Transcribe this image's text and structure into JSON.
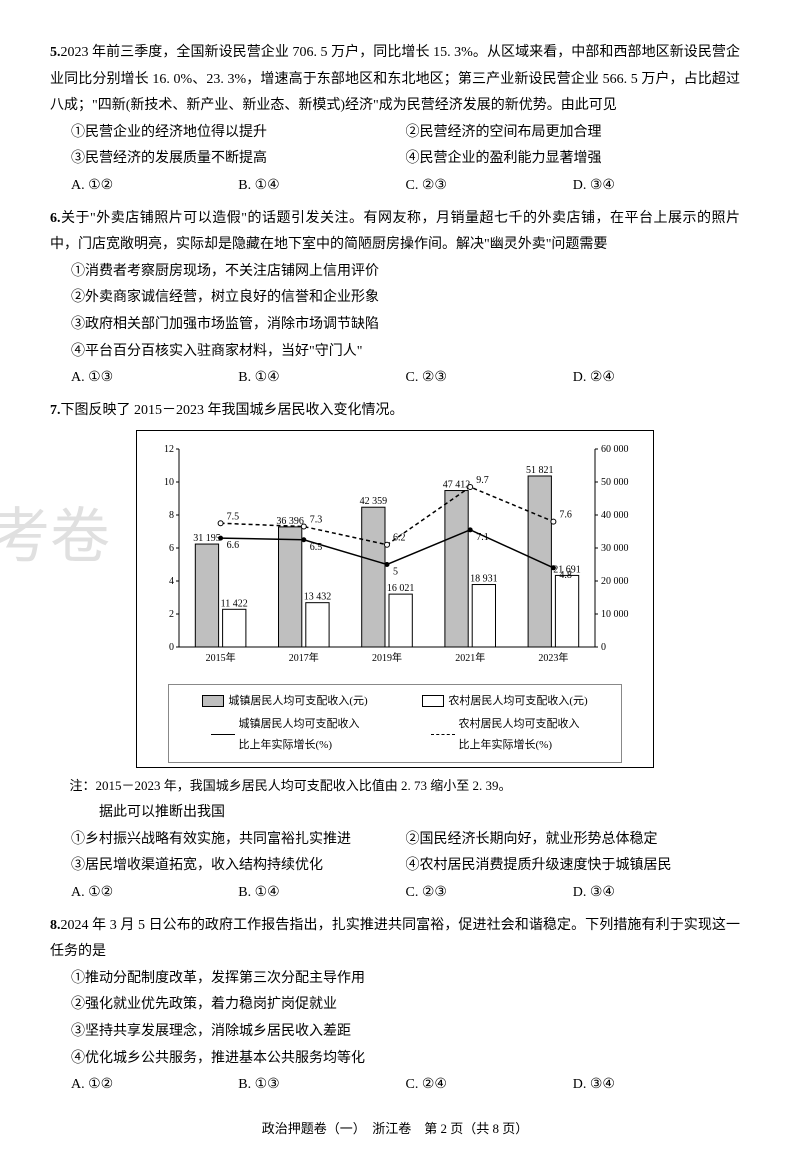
{
  "watermark": "考卷",
  "q5": {
    "num": "5.",
    "stem": "2023 年前三季度，全国新设民营企业 706. 5 万户，同比增长 15. 3%。从区域来看，中部和西部地区新设民营企业同比分别增长 16. 0%、23. 3%，增速高于东部地区和东北地区；第三产业新设民营企业 566. 5 万户，占比超过八成；\"四新(新技术、新产业、新业态、新模式)经济\"成为民营经济发展的新优势。由此可见",
    "s1": "①民营企业的经济地位得以提升",
    "s2": "②民营经济的空间布局更加合理",
    "s3": "③民营经济的发展质量不断提高",
    "s4": "④民营企业的盈利能力显著增强",
    "A": "A. ①②",
    "B": "B. ①④",
    "C": "C. ②③",
    "D": "D. ③④"
  },
  "q6": {
    "num": "6.",
    "stem": "关于\"外卖店铺照片可以造假\"的话题引发关注。有网友称，月销量超七千的外卖店铺，在平台上展示的照片中，门店宽敞明亮，实际却是隐藏在地下室中的简陋厨房操作间。解决\"幽灵外卖\"问题需要",
    "s1": "①消费者考察厨房现场，不关注店铺网上信用评价",
    "s2": "②外卖商家诚信经营，树立良好的信誉和企业形象",
    "s3": "③政府相关部门加强市场监管，消除市场调节缺陷",
    "s4": "④平台百分百核实入驻商家材料，当好\"守门人\"",
    "A": "A. ①③",
    "B": "B. ①④",
    "C": "C. ②③",
    "D": "D. ②④"
  },
  "q7": {
    "num": "7.",
    "stem": "下图反映了 2015－2023 年我国城乡居民收入变化情况。",
    "chart": {
      "left_ticks": [
        0,
        2,
        4,
        6,
        8,
        10,
        12
      ],
      "right_ticks": [
        0,
        10000,
        20000,
        30000,
        40000,
        50000,
        60000
      ],
      "left_max": 12,
      "right_max": 60000,
      "years": [
        "2015年",
        "2017年",
        "2019年",
        "2021年",
        "2023年"
      ],
      "urban_income": [
        31195,
        36396,
        42359,
        47412,
        51821
      ],
      "rural_income": [
        11422,
        13432,
        16021,
        18931,
        21691
      ],
      "urban_growth": [
        6.6,
        6.5,
        5.0,
        7.1,
        4.8
      ],
      "rural_growth": [
        7.5,
        7.3,
        6.2,
        9.7,
        7.6
      ],
      "urban_bar_fill": "#bfbfbf",
      "rural_bar_fill": "#ffffff",
      "bar_border": "#000000",
      "line_solid_color": "#000000",
      "line_dash_color": "#000000",
      "axis_color": "#000000",
      "bg": "#ffffff",
      "label_fontsize": 10,
      "legend": {
        "bar1": "城镇居民人均可支配收入(元)",
        "bar2": "农村居民人均可支配收入(元)",
        "line1a": "城镇居民人均可支配收入",
        "line1b": "比上年实际增长(%)",
        "line2a": "农村居民人均可支配收入",
        "line2b": "比上年实际增长(%)"
      }
    },
    "note": "注：2015－2023 年，我国城乡居民人均可支配收入比值由 2. 73 缩小至 2. 39。",
    "lead": "据此可以推断出我国",
    "s1": "①乡村振兴战略有效实施，共同富裕扎实推进",
    "s2": "②国民经济长期向好，就业形势总体稳定",
    "s3": "③居民增收渠道拓宽，收入结构持续优化",
    "s4": "④农村居民消费提质升级速度快于城镇居民",
    "A": "A. ①②",
    "B": "B. ①④",
    "C": "C. ②③",
    "D": "D. ③④"
  },
  "q8": {
    "num": "8.",
    "stem": "2024 年 3 月 5 日公布的政府工作报告指出，扎实推进共同富裕，促进社会和谐稳定。下列措施有利于实现这一任务的是",
    "s1": "①推动分配制度改革，发挥第三次分配主导作用",
    "s2": "②强化就业优先政策，着力稳岗扩岗促就业",
    "s3": "③坚持共享发展理念，消除城乡居民收入差距",
    "s4": "④优化城乡公共服务，推进基本公共服务均等化",
    "A": "A. ①②",
    "B": "B. ①③",
    "C": "C. ②④",
    "D": "D. ③④"
  },
  "footer": "政治押题卷（一）　浙江卷　第 2 页（共 8 页）"
}
